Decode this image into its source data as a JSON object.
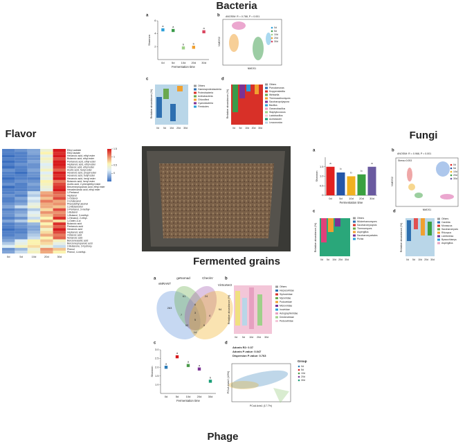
{
  "titles": {
    "bacteria": "Bacteria",
    "flavor": "Flavor",
    "fungi": "Fungi",
    "grains": "Fermented grains",
    "phage": "Phage"
  },
  "panel_letters": [
    "a",
    "b",
    "c",
    "d"
  ],
  "days": [
    "0d",
    "5d",
    "10d",
    "20d",
    "30d"
  ],
  "abundance_label": "Relative abundance (%)",
  "bacteria": {
    "nmds_stat": "ANOSIM: R = 0.788, P = 0.001",
    "nmds_x": "NMDS1",
    "nmds_y": "NMDS2",
    "c_legend": [
      "Others",
      "Gammaproteobacteria",
      "Proteobacteria",
      "Actinobacteria",
      "Chloroflexi",
      "Cyanobacteria",
      "Firmicutes"
    ],
    "d_legend": [
      "Others",
      "Pseudomonas",
      "Kroppenstedtia",
      "Weissella",
      "Thermoactinomyces",
      "Saccharopolyspora",
      "Bacillus",
      "Oceanobacillus",
      "Staphylococcus",
      "Lactobacillus",
      "Acetobacter",
      "Leuconostoc"
    ]
  },
  "flavor": {
    "compounds": [
      "Ethyl acetate",
      "Ethyl lactate",
      "Hexanoic acid, ethyl ester",
      "Butanoic acid, ethyl ester",
      "Pentanoic acid, ethyl ester",
      "Heptanoic acid, ethyl ester",
      "Octanoic acid, ethyl ester",
      "Acetic acid, hexyl ester",
      "Hexanoic acid, propyl ester",
      "Hexanoic acid, butyl ester",
      "Hexanoic acid, hexyl ester",
      "Butanoic acid, hexyl ester",
      "Acetic acid, 2-phenylethyl ester",
      "Benzenepropanoic acid, ethyl ester",
      "Hexadecanoic acid, ethyl ester",
      "1-Pentanol",
      "Heptanol",
      "1-Octanol",
      "2-Undecanol",
      "Phenylethyl alcohol",
      "2,3-Butanediol",
      "2-Pentanol, 3-methyl-",
      "1-Butanol",
      "1-Butanol, 3-methyl-",
      "1-Hexanol, 2-ethyl-",
      "1-Octen-3-ol",
      "Butanoic acid",
      "Pentanoic acid",
      "Hexanoic acid",
      "Heptanoic acid",
      "Octanoic acid",
      "Nonanoic acid",
      "Benzeneacetic acid",
      "Benzenepropanoic acid",
      "2-Butanone, 3-hydroxy-",
      "Phenol",
      "Phenol, 4-methyl-"
    ],
    "matrix": [
      [
        -0.4,
        -0.3,
        -0.2,
        0.4,
        1.5
      ],
      [
        -0.4,
        -0.4,
        -0.2,
        0.6,
        1.4
      ],
      [
        -0.5,
        -0.4,
        -0.3,
        0.3,
        1.5
      ],
      [
        -0.4,
        -0.4,
        -0.3,
        0.5,
        1.3
      ],
      [
        -0.5,
        -0.4,
        -0.2,
        0.4,
        1.5
      ],
      [
        -0.4,
        -0.3,
        -0.3,
        0.2,
        1.5
      ],
      [
        -0.5,
        -0.4,
        -0.3,
        0.3,
        1.4
      ],
      [
        -0.3,
        -0.4,
        -0.2,
        0.5,
        1.2
      ],
      [
        -0.4,
        -0.5,
        -0.3,
        0.2,
        1.5
      ],
      [
        -0.4,
        -0.4,
        -0.3,
        0.4,
        1.4
      ],
      [
        -0.5,
        -0.4,
        -0.4,
        0.3,
        1.5
      ],
      [
        -0.4,
        -0.3,
        -0.3,
        0.6,
        1.1
      ],
      [
        -0.3,
        -0.4,
        -0.2,
        0.5,
        1.3
      ],
      [
        -0.5,
        -0.4,
        -0.3,
        0.4,
        1.4
      ],
      [
        -0.4,
        -0.4,
        -0.3,
        0.3,
        1.5
      ],
      [
        -0.4,
        -0.3,
        0.1,
        0.9,
        1.2
      ],
      [
        -0.3,
        -0.4,
        0.0,
        1.0,
        1.1
      ],
      [
        -0.4,
        -0.2,
        0.2,
        0.8,
        1.3
      ],
      [
        -0.4,
        -0.3,
        0.1,
        1.1,
        0.9
      ],
      [
        -0.3,
        -0.2,
        0.3,
        0.9,
        1.0
      ],
      [
        -0.2,
        0.1,
        0.4,
        0.9,
        0.8
      ],
      [
        -0.4,
        -0.3,
        0.0,
        0.7,
        1.3
      ],
      [
        -0.3,
        -0.2,
        0.2,
        1.0,
        1.0
      ],
      [
        -0.3,
        -0.1,
        0.3,
        0.8,
        1.1
      ],
      [
        -0.4,
        -0.3,
        0.1,
        0.6,
        1.4
      ],
      [
        -0.2,
        0.0,
        0.5,
        0.9,
        0.7
      ],
      [
        -0.4,
        -0.3,
        -0.1,
        0.6,
        1.4
      ],
      [
        -0.4,
        -0.3,
        -0.2,
        0.8,
        1.2
      ],
      [
        -0.5,
        -0.4,
        -0.2,
        0.5,
        1.5
      ],
      [
        -0.4,
        -0.4,
        -0.1,
        0.7,
        1.3
      ],
      [
        -0.4,
        -0.3,
        0.0,
        0.9,
        1.1
      ],
      [
        -0.3,
        -0.3,
        0.1,
        0.6,
        1.2
      ],
      [
        -0.2,
        0.2,
        0.6,
        0.8,
        0.5
      ],
      [
        0.0,
        0.3,
        0.6,
        0.7,
        0.3
      ],
      [
        0.2,
        0.5,
        0.7,
        0.4,
        0.1
      ],
      [
        -0.3,
        -0.1,
        0.4,
        1.0,
        0.8
      ],
      [
        -0.2,
        0.1,
        0.5,
        0.9,
        0.6
      ]
    ],
    "colorbar_lim": [
      -0.5,
      1.5
    ],
    "colorbar_ticks": [
      1.5,
      1,
      0.5,
      0
    ]
  },
  "fungi": {
    "nmds_stat": "ANOSIM: R = 0.968, P = 0.001",
    "stress": "Stress=0.053",
    "nmds_x": "NMDS1",
    "nmds_y": "NMDS2",
    "c_legend": [
      "Others",
      "Wickerhamomyces",
      "Saccharomycopsis",
      "Thermomyces",
      "Aspergillus",
      "Saccharomycetales",
      "Pichia"
    ],
    "d_legend": [
      "Others",
      "Candida",
      "Monascus",
      "Saccharomyces",
      "Rhizopus",
      "Lichtheimia",
      "Byssochlamys",
      "Aspergillus"
    ]
  },
  "phage": {
    "venn_names": [
      "vMRANT",
      "geNomad",
      "CheckV",
      "VirSorter2"
    ],
    "venn_counts": [
      263,
      61,
      24,
      94,
      7,
      6,
      4,
      5,
      52,
      9,
      14,
      3
    ],
    "b_legend": [
      "Others",
      "Herpesviridae",
      "Siphoviridae",
      "Myoviridae",
      "Podoviridae",
      "Microviridae",
      "Inoviridae",
      "Autographiviridae",
      "Drexlerviridae",
      "Peduoviridae"
    ],
    "adonis": [
      "Adonis R2: 0.37",
      "Adonis P-value: 0.047",
      "Dispersion P-value: 0.763"
    ],
    "pcoa_x": "PCoA Axis1 (17.7%)",
    "pcoa_y": "PCoA Axis2 (13%)",
    "group_title": "Group"
  },
  "chart_data": [
    {
      "type": "scatter",
      "categories": [
        "0d",
        "5d",
        "10d",
        "20d",
        "30d"
      ],
      "values": [
        4.6,
        4.5,
        1.8,
        1.9,
        4.3
      ],
      "colors": [
        "#2b9fd9",
        "#3a9b4a",
        "#9fd08a",
        "#f0a030",
        "#d9455f"
      ],
      "annotations": [
        "a",
        "a",
        "b",
        "b",
        "a"
      ],
      "ylim": [
        0,
        6
      ],
      "yticks": [
        2,
        4,
        6
      ],
      "x_label": "Fermentation time",
      "y_label": "Shannon"
    },
    {
      "type": "bar",
      "categories": [
        "0d",
        "5d",
        "10d",
        "20d",
        "30d"
      ],
      "values": [
        1.5,
        1.2,
        1.0,
        1.1,
        1.5
      ],
      "colors": [
        "#e02020",
        "#2456a8",
        "#f0b020",
        "#3aa040",
        "#6a5aa0"
      ],
      "annotations": [
        "a",
        "b",
        "b",
        "b",
        "a"
      ],
      "ylim": [
        0,
        2
      ],
      "yticks": [
        0,
        {
          "value": 0.5,
          "label": "0.5"
        },
        {
          "value": 1,
          "label": "1.0"
        },
        {
          "value": 1.5,
          "label": "1.5"
        }
      ],
      "x_label": "Fermentation time",
      "y_label": "Shannon"
    },
    {
      "type": "scatter",
      "categories": [
        "0d",
        "5d",
        "10d",
        "20d",
        "30d"
      ],
      "values": [
        2.0,
        2.6,
        2.1,
        1.9,
        1.2
      ],
      "colors": [
        "#2c7bb6",
        "#d7191c",
        "#4a9a4a",
        "#7b3294",
        "#1a9e77"
      ],
      "annotations": [
        "a",
        "a",
        "a",
        "a",
        "b"
      ],
      "ylim": [
        0.5,
        3
      ],
      "yticks": [
        {
          "value": 1,
          "label": "1.0"
        },
        {
          "value": 1.5,
          "label": "1.5"
        },
        {
          "value": 2,
          "label": "2.0"
        },
        {
          "value": 2.5,
          "label": "2.5"
        },
        {
          "value": 3,
          "label": "3.0"
        }
      ],
      "x_label": "Fermentation time",
      "y_label": "Shannon"
    }
  ]
}
